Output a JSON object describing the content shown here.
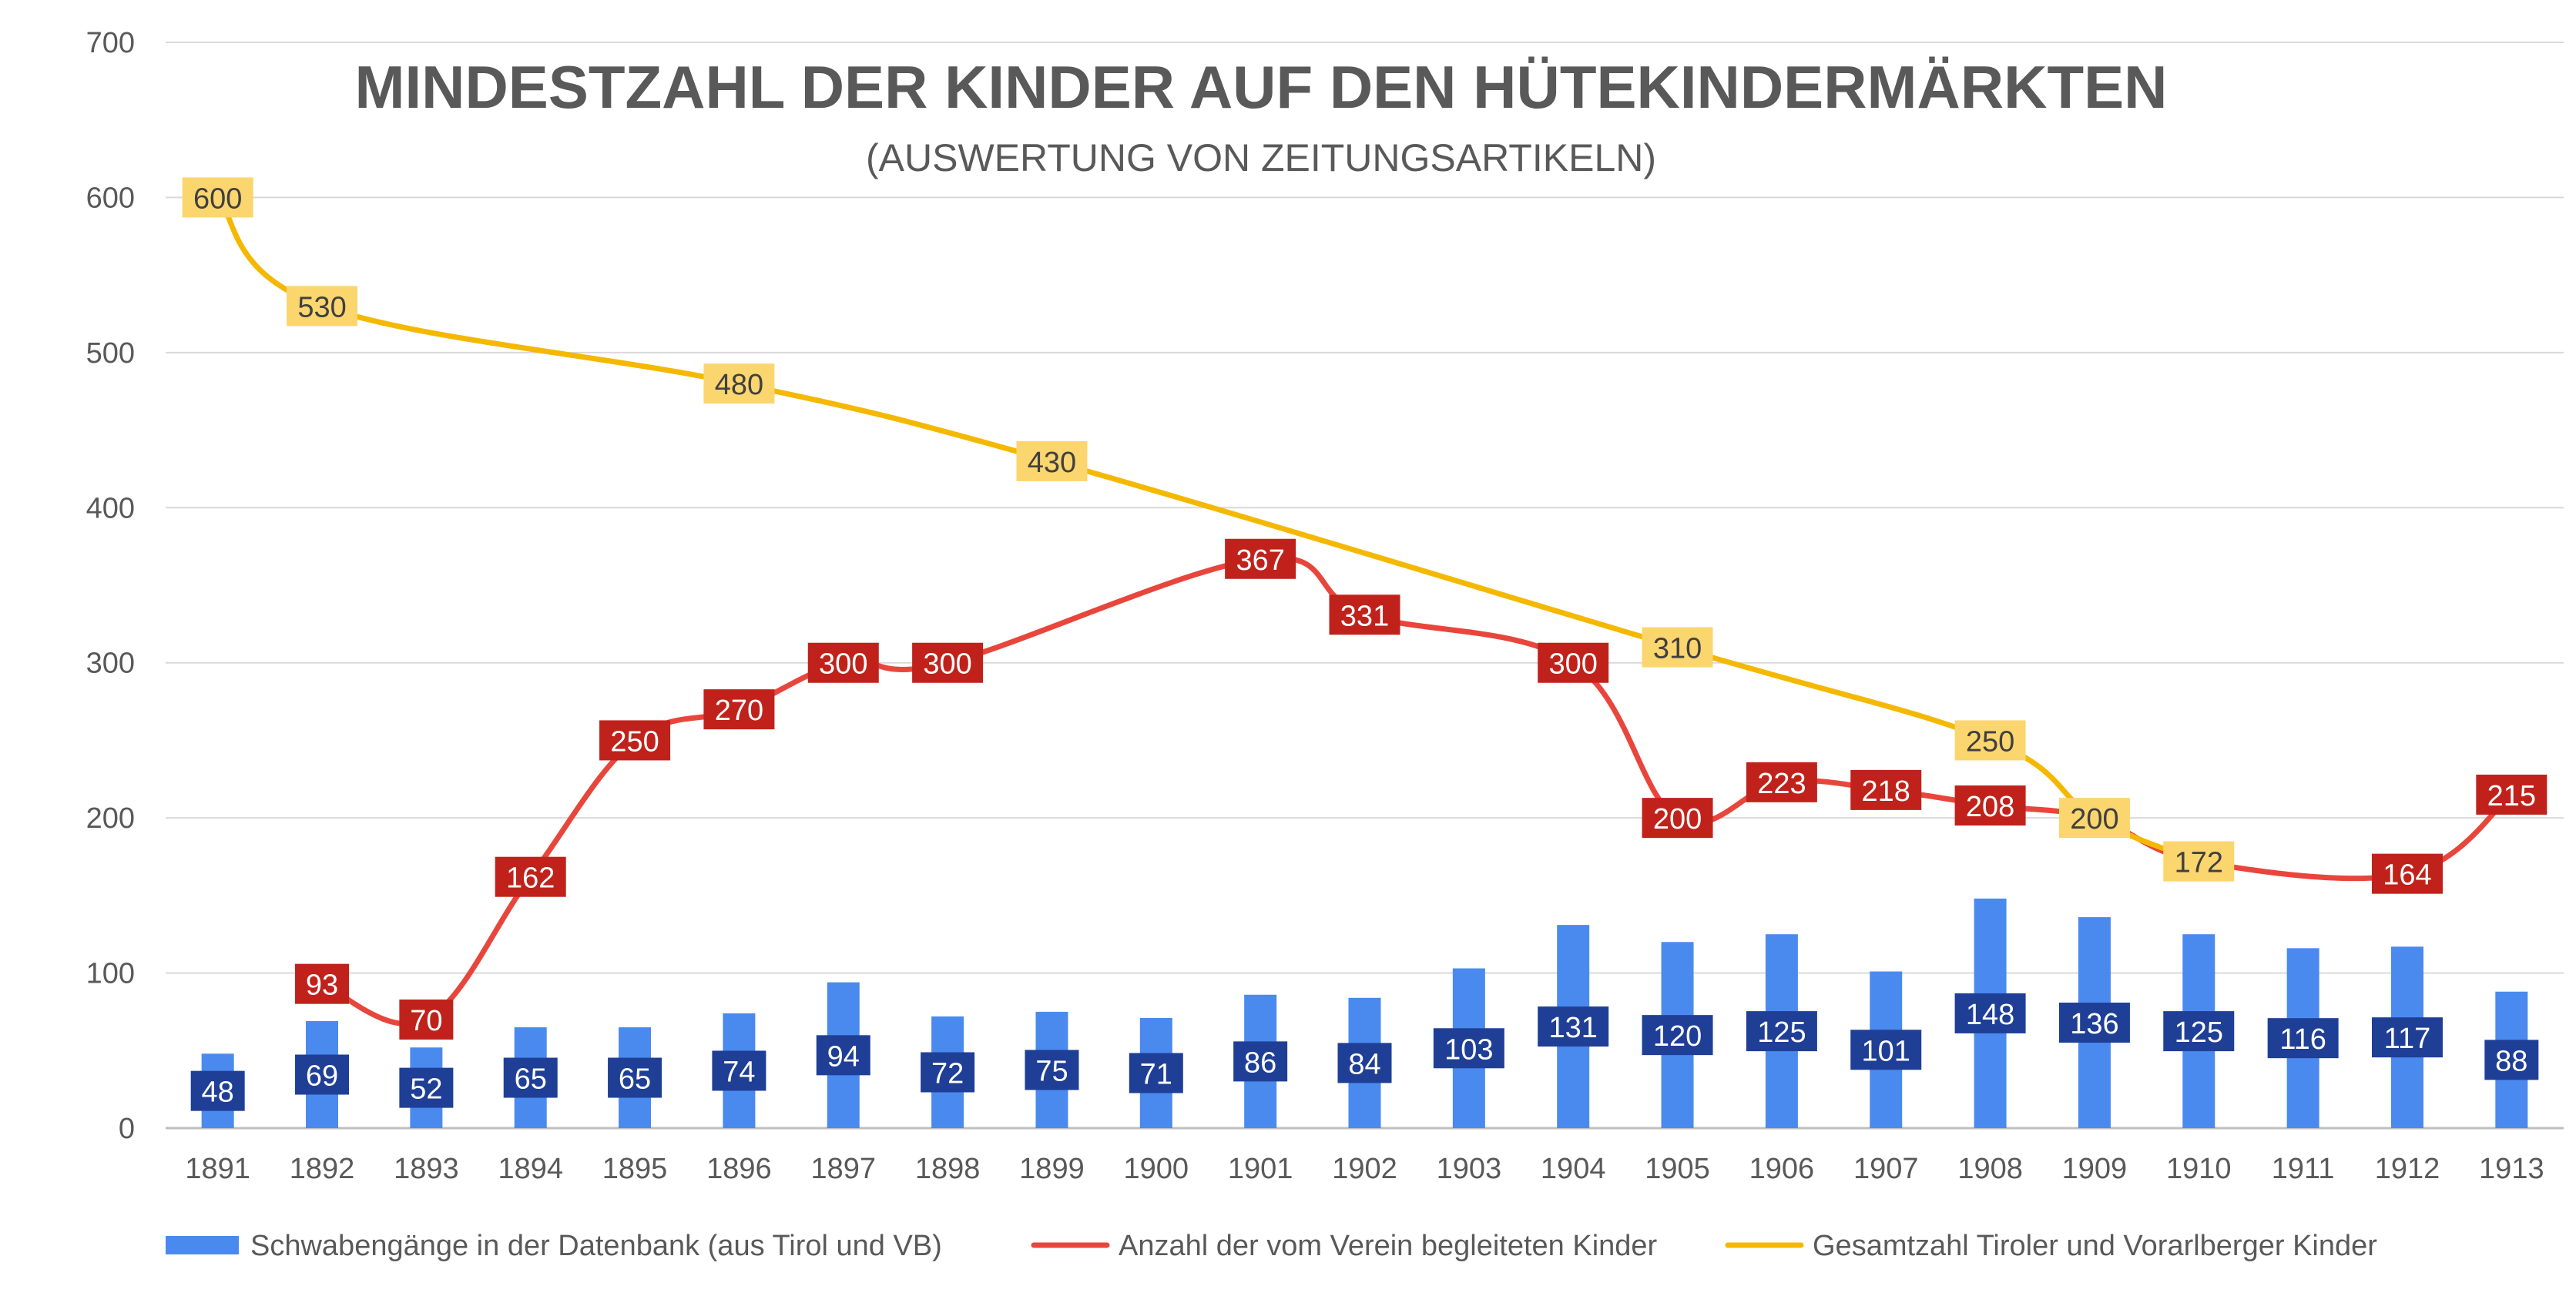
{
  "chart_data": {
    "type": "bar",
    "title": "MINDESTZAHL DER KINDER AUF DEN HÜTEKINDERMÄRKTEN",
    "subtitle": "(AUSWERTUNG VON ZEITUNGSARTIKELN)",
    "xlabel": "",
    "ylabel": "",
    "ylim": [
      0,
      700
    ],
    "yticks": [
      0,
      100,
      200,
      300,
      400,
      500,
      600,
      700
    ],
    "grid": true,
    "legend_position": "bottom",
    "categories": [
      "1891",
      "1892",
      "1893",
      "1894",
      "1895",
      "1896",
      "1897",
      "1898",
      "1899",
      "1900",
      "1901",
      "1902",
      "1903",
      "1904",
      "1905",
      "1906",
      "1907",
      "1908",
      "1909",
      "1910",
      "1911",
      "1912",
      "1913"
    ],
    "series": [
      {
        "name": "Schwabengänge in der Datenbank (aus Tirol und VB)",
        "type": "bar",
        "color": "#4A8AEF",
        "label_bg": "#1F3F96",
        "label_color": "#FFFFFF",
        "values": [
          48,
          69,
          52,
          65,
          65,
          74,
          94,
          72,
          75,
          71,
          86,
          84,
          103,
          131,
          120,
          125,
          101,
          148,
          136,
          125,
          116,
          117,
          88
        ]
      },
      {
        "name": "Anzahl der vom Verein begleiteten Kinder",
        "type": "line",
        "color": "#E8463C",
        "label_bg": "#C0221B",
        "label_color": "#FFFFFF",
        "points": [
          [
            1892,
            93
          ],
          [
            1893,
            70
          ],
          [
            1894,
            162
          ],
          [
            1895,
            250
          ],
          [
            1896,
            270
          ],
          [
            1897,
            300
          ],
          [
            1898,
            300
          ],
          [
            1901,
            367
          ],
          [
            1902,
            331
          ],
          [
            1904,
            300
          ],
          [
            1905,
            200
          ],
          [
            1906,
            223
          ],
          [
            1907,
            218
          ],
          [
            1908,
            208
          ],
          [
            1909,
            200
          ],
          [
            1910,
            172
          ],
          [
            1912,
            164
          ],
          [
            1913,
            215
          ]
        ],
        "labeled_years": [
          1892,
          1893,
          1894,
          1895,
          1896,
          1897,
          1898,
          1901,
          1902,
          1904,
          1905,
          1906,
          1907,
          1908,
          1912,
          1913
        ]
      },
      {
        "name": "Gesamtzahl Tiroler und Vorarlberger Kinder",
        "type": "line",
        "color": "#F5B800",
        "label_bg": "#FBD56E",
        "label_color": "#404040",
        "points": [
          [
            1891,
            600
          ],
          [
            1892,
            530
          ],
          [
            1896,
            480
          ],
          [
            1899,
            430
          ],
          [
            1905,
            310
          ],
          [
            1908,
            250
          ],
          [
            1909,
            200
          ],
          [
            1910,
            172
          ]
        ],
        "labeled_years": [
          1891,
          1892,
          1896,
          1899,
          1905,
          1908,
          1909,
          1910
        ]
      }
    ]
  }
}
